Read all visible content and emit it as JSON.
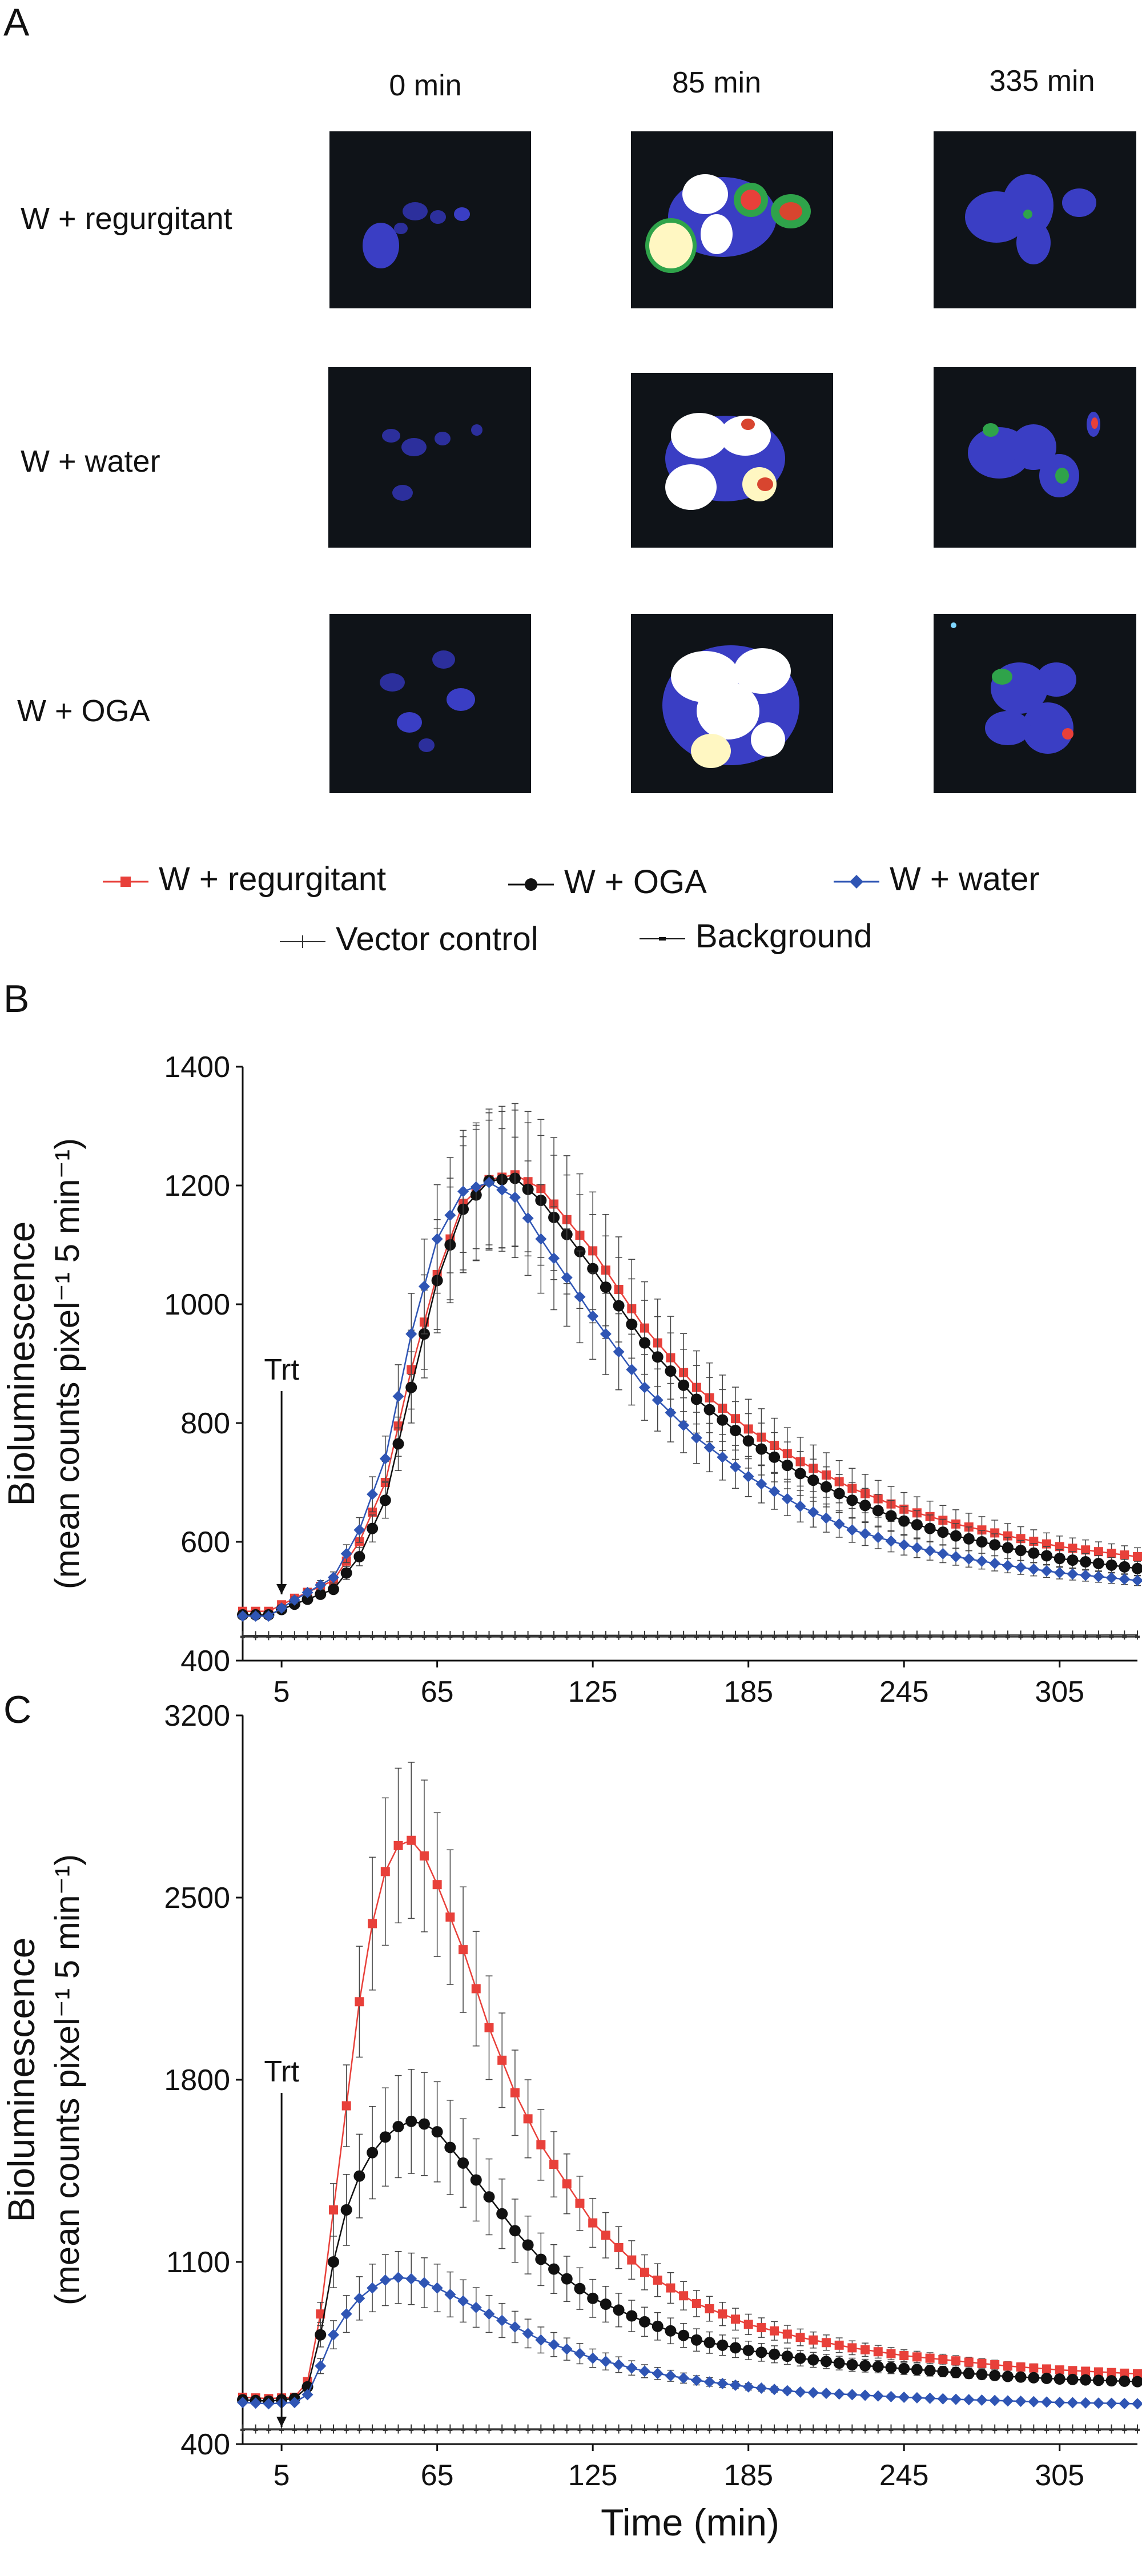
{
  "panel_labels": {
    "a": "A",
    "b": "B",
    "c": "C"
  },
  "image_grid": {
    "columns": [
      "0 min",
      "85 min",
      "335 min"
    ],
    "rows": [
      "W + regurgitant",
      "W + water",
      "W + OGA"
    ]
  },
  "legend": {
    "items": [
      {
        "label": "W + regurgitant",
        "color": "#e8403a",
        "marker": "square"
      },
      {
        "label": "W + OGA",
        "color": "#111111",
        "marker": "circle"
      },
      {
        "label": "W + water",
        "color": "#2f55b4",
        "marker": "diamond"
      },
      {
        "label": "Vector control",
        "color": "#333333",
        "marker": "plus"
      },
      {
        "label": "Background",
        "color": "#333333",
        "marker": "dash"
      }
    ]
  },
  "annotations": {
    "treatment_b": "Trt",
    "treatment_c": "Trt"
  },
  "chart_data": [
    {
      "type": "line",
      "panel": "B",
      "xlabel": "",
      "ylabel_line1": "Bioluminescence",
      "ylabel_line2": "(mean counts pixel⁻¹ 5 min⁻¹)",
      "xlim": [
        -10,
        335
      ],
      "ylim": [
        400,
        1400
      ],
      "xticks": [
        "5",
        "65",
        "125",
        "185",
        "245",
        "305"
      ],
      "yticks": [
        "400",
        "600",
        "800",
        "1000",
        "1200",
        "1400"
      ],
      "treatment_time": 5,
      "series": [
        {
          "name": "W + regurgitant",
          "color": "#e8403a",
          "marker": "square",
          "points": [
            [
              -10,
              483
            ],
            [
              0,
              483
            ],
            [
              10,
              505
            ],
            [
              25,
              535
            ],
            [
              35,
              600
            ],
            [
              45,
              700
            ],
            [
              55,
              890
            ],
            [
              65,
              1050
            ],
            [
              75,
              1170
            ],
            [
              85,
              1210
            ],
            [
              95,
              1218
            ],
            [
              105,
              1195
            ],
            [
              125,
              1090
            ],
            [
              145,
              960
            ],
            [
              165,
              860
            ],
            [
              185,
              790
            ],
            [
              205,
              735
            ],
            [
              225,
              690
            ],
            [
              245,
              655
            ],
            [
              265,
              630
            ],
            [
              285,
              610
            ],
            [
              305,
              592
            ],
            [
              335,
              575
            ]
          ],
          "error": 120
        },
        {
          "name": "W + OGA",
          "color": "#111111",
          "marker": "circle",
          "points": [
            [
              -10,
              477
            ],
            [
              0,
              477
            ],
            [
              10,
              495
            ],
            [
              25,
              520
            ],
            [
              35,
              575
            ],
            [
              45,
              670
            ],
            [
              55,
              860
            ],
            [
              65,
              1040
            ],
            [
              75,
              1160
            ],
            [
              85,
              1208
            ],
            [
              95,
              1212
            ],
            [
              105,
              1175
            ],
            [
              125,
              1060
            ],
            [
              145,
              935
            ],
            [
              165,
              840
            ],
            [
              185,
              770
            ],
            [
              205,
              715
            ],
            [
              225,
              670
            ],
            [
              245,
              635
            ],
            [
              265,
              610
            ],
            [
              285,
              590
            ],
            [
              305,
              572
            ],
            [
              335,
              555
            ]
          ],
          "error": 115
        },
        {
          "name": "W + water",
          "color": "#2f55b4",
          "marker": "diamond",
          "points": [
            [
              -10,
              475
            ],
            [
              0,
              475
            ],
            [
              10,
              502
            ],
            [
              25,
              540
            ],
            [
              35,
              620
            ],
            [
              45,
              740
            ],
            [
              55,
              950
            ],
            [
              65,
              1110
            ],
            [
              75,
              1190
            ],
            [
              85,
              1205
            ],
            [
              95,
              1180
            ],
            [
              105,
              1110
            ],
            [
              125,
              980
            ],
            [
              145,
              860
            ],
            [
              165,
              775
            ],
            [
              185,
              710
            ],
            [
              205,
              660
            ],
            [
              225,
              620
            ],
            [
              245,
              595
            ],
            [
              265,
              575
            ],
            [
              285,
              560
            ],
            [
              305,
              548
            ],
            [
              335,
              535
            ]
          ],
          "error": 105
        },
        {
          "name": "Vector control",
          "color": "#333333",
          "marker": "plus",
          "points": [
            [
              -10,
              442
            ],
            [
              335,
              443
            ]
          ],
          "error": 0
        },
        {
          "name": "Background",
          "color": "#333333",
          "marker": "dash",
          "points": [
            [
              -10,
              440
            ],
            [
              335,
              440
            ]
          ],
          "error": 0
        }
      ]
    },
    {
      "type": "line",
      "panel": "C",
      "xlabel": "Time (min)",
      "ylabel_line1": "Bioluminescence",
      "ylabel_line2": "(mean counts pixel⁻¹ 5 min⁻¹)",
      "xlim": [
        -10,
        335
      ],
      "ylim": [
        400,
        3200
      ],
      "xticks": [
        "5",
        "65",
        "125",
        "185",
        "245",
        "305"
      ],
      "yticks": [
        "400",
        "1100",
        "1800",
        "2500",
        "3200"
      ],
      "treatment_time": 5,
      "series": [
        {
          "name": "W + regurgitant",
          "color": "#e8403a",
          "marker": "square",
          "points": [
            [
              -10,
              580
            ],
            [
              0,
              575
            ],
            [
              10,
              580
            ],
            [
              15,
              640
            ],
            [
              20,
              900
            ],
            [
              25,
              1300
            ],
            [
              30,
              1700
            ],
            [
              35,
              2100
            ],
            [
              40,
              2400
            ],
            [
              45,
              2600
            ],
            [
              50,
              2700
            ],
            [
              55,
              2720
            ],
            [
              60,
              2660
            ],
            [
              65,
              2550
            ],
            [
              75,
              2300
            ],
            [
              85,
              2000
            ],
            [
              95,
              1750
            ],
            [
              105,
              1550
            ],
            [
              125,
              1250
            ],
            [
              145,
              1060
            ],
            [
              165,
              940
            ],
            [
              185,
              860
            ],
            [
              205,
              810
            ],
            [
              225,
              770
            ],
            [
              245,
              740
            ],
            [
              265,
              720
            ],
            [
              285,
              700
            ],
            [
              305,
              685
            ],
            [
              335,
              670
            ]
          ],
          "error": 300
        },
        {
          "name": "W + OGA",
          "color": "#111111",
          "marker": "circle",
          "points": [
            [
              -10,
              570
            ],
            [
              0,
              565
            ],
            [
              10,
              575
            ],
            [
              15,
              620
            ],
            [
              20,
              820
            ],
            [
              25,
              1100
            ],
            [
              30,
              1300
            ],
            [
              35,
              1430
            ],
            [
              40,
              1520
            ],
            [
              45,
              1580
            ],
            [
              50,
              1620
            ],
            [
              55,
              1640
            ],
            [
              60,
              1630
            ],
            [
              65,
              1600
            ],
            [
              75,
              1480
            ],
            [
              85,
              1350
            ],
            [
              95,
              1220
            ],
            [
              105,
              1110
            ],
            [
              125,
              960
            ],
            [
              145,
              870
            ],
            [
              165,
              800
            ],
            [
              185,
              760
            ],
            [
              205,
              730
            ],
            [
              225,
              705
            ],
            [
              245,
              690
            ],
            [
              265,
              675
            ],
            [
              285,
              660
            ],
            [
              305,
              650
            ],
            [
              335,
              640
            ]
          ],
          "error": 200
        },
        {
          "name": "W + water",
          "color": "#2f55b4",
          "marker": "diamond",
          "points": [
            [
              -10,
              560
            ],
            [
              0,
              555
            ],
            [
              10,
              560
            ],
            [
              15,
              590
            ],
            [
              20,
              700
            ],
            [
              25,
              820
            ],
            [
              30,
              900
            ],
            [
              35,
              960
            ],
            [
              40,
              1000
            ],
            [
              45,
              1030
            ],
            [
              50,
              1040
            ],
            [
              55,
              1035
            ],
            [
              60,
              1020
            ],
            [
              65,
              1000
            ],
            [
              75,
              950
            ],
            [
              85,
              900
            ],
            [
              95,
              850
            ],
            [
              105,
              800
            ],
            [
              125,
              730
            ],
            [
              145,
              680
            ],
            [
              165,
              645
            ],
            [
              185,
              620
            ],
            [
              205,
              600
            ],
            [
              225,
              590
            ],
            [
              245,
              580
            ],
            [
              265,
              572
            ],
            [
              285,
              566
            ],
            [
              305,
              560
            ],
            [
              335,
              555
            ]
          ],
          "error": 100
        },
        {
          "name": "Vector control",
          "color": "#333333",
          "marker": "plus",
          "points": [
            [
              -10,
              458
            ],
            [
              335,
              458
            ]
          ],
          "error": 0
        },
        {
          "name": "Background",
          "color": "#333333",
          "marker": "dash",
          "points": [
            [
              -10,
              455
            ],
            [
              335,
              455
            ]
          ],
          "error": 0
        }
      ]
    }
  ]
}
